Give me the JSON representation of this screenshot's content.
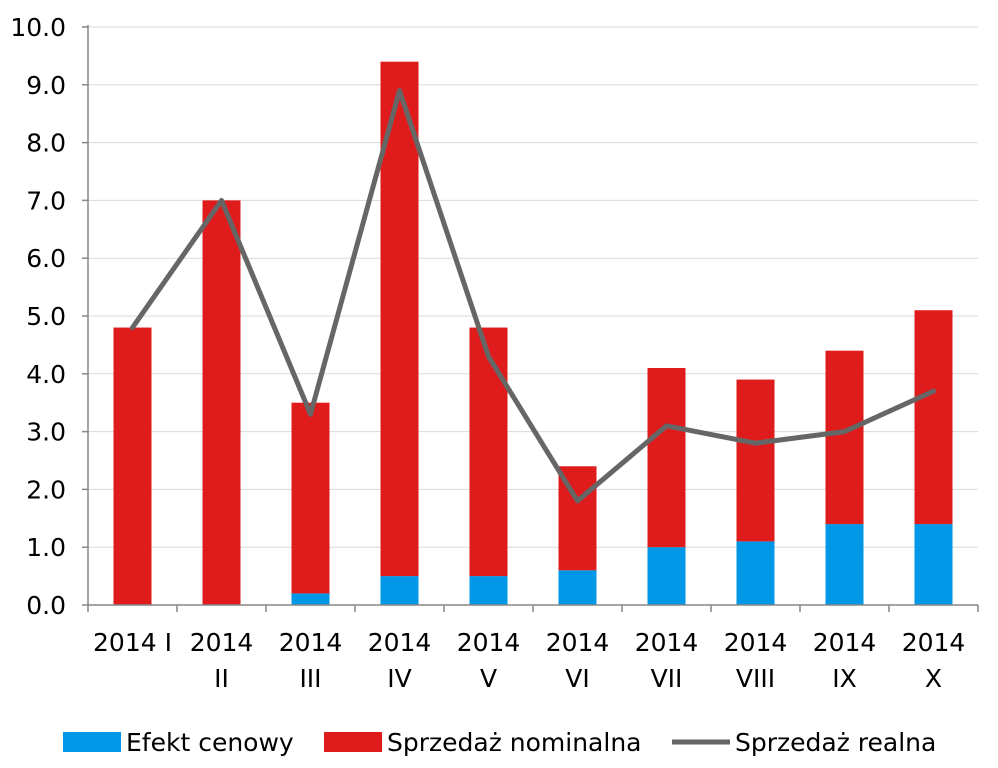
{
  "chart_data": {
    "type": "bar",
    "stacked": true,
    "categories": [
      [
        "2014 I"
      ],
      [
        "2014",
        "II"
      ],
      [
        "2014",
        "III"
      ],
      [
        "2014",
        "IV"
      ],
      [
        "2014",
        "V"
      ],
      [
        "2014",
        "VI"
      ],
      [
        "2014",
        "VII"
      ],
      [
        "2014",
        "VIII"
      ],
      [
        "2014",
        "IX"
      ],
      [
        "2014",
        "X"
      ]
    ],
    "series": [
      {
        "name": "Efekt cenowy",
        "kind": "bar",
        "color": "#0097e6",
        "values": [
          0.0,
          0.0,
          0.2,
          0.5,
          0.5,
          0.6,
          1.0,
          1.1,
          1.4,
          1.4
        ]
      },
      {
        "name": "Sprzedaż nominalna",
        "kind": "bar",
        "color": "#df1b1b",
        "values": [
          4.8,
          7.0,
          3.3,
          8.9,
          4.3,
          1.8,
          3.1,
          2.8,
          3.0,
          3.7
        ]
      },
      {
        "name": "Sprzedaż realna",
        "kind": "line",
        "color": "#666666",
        "values": [
          4.8,
          7.0,
          3.3,
          8.9,
          4.3,
          1.8,
          3.1,
          2.8,
          3.0,
          3.7
        ]
      }
    ],
    "yticks": [
      "0.0",
      "1.0",
      "2.0",
      "3.0",
      "4.0",
      "5.0",
      "6.0",
      "7.0",
      "8.0",
      "9.0",
      "10.0"
    ],
    "ylim": [
      0,
      10
    ],
    "grid": true,
    "legend": "bottom",
    "title": "",
    "xlabel": "",
    "ylabel": ""
  }
}
